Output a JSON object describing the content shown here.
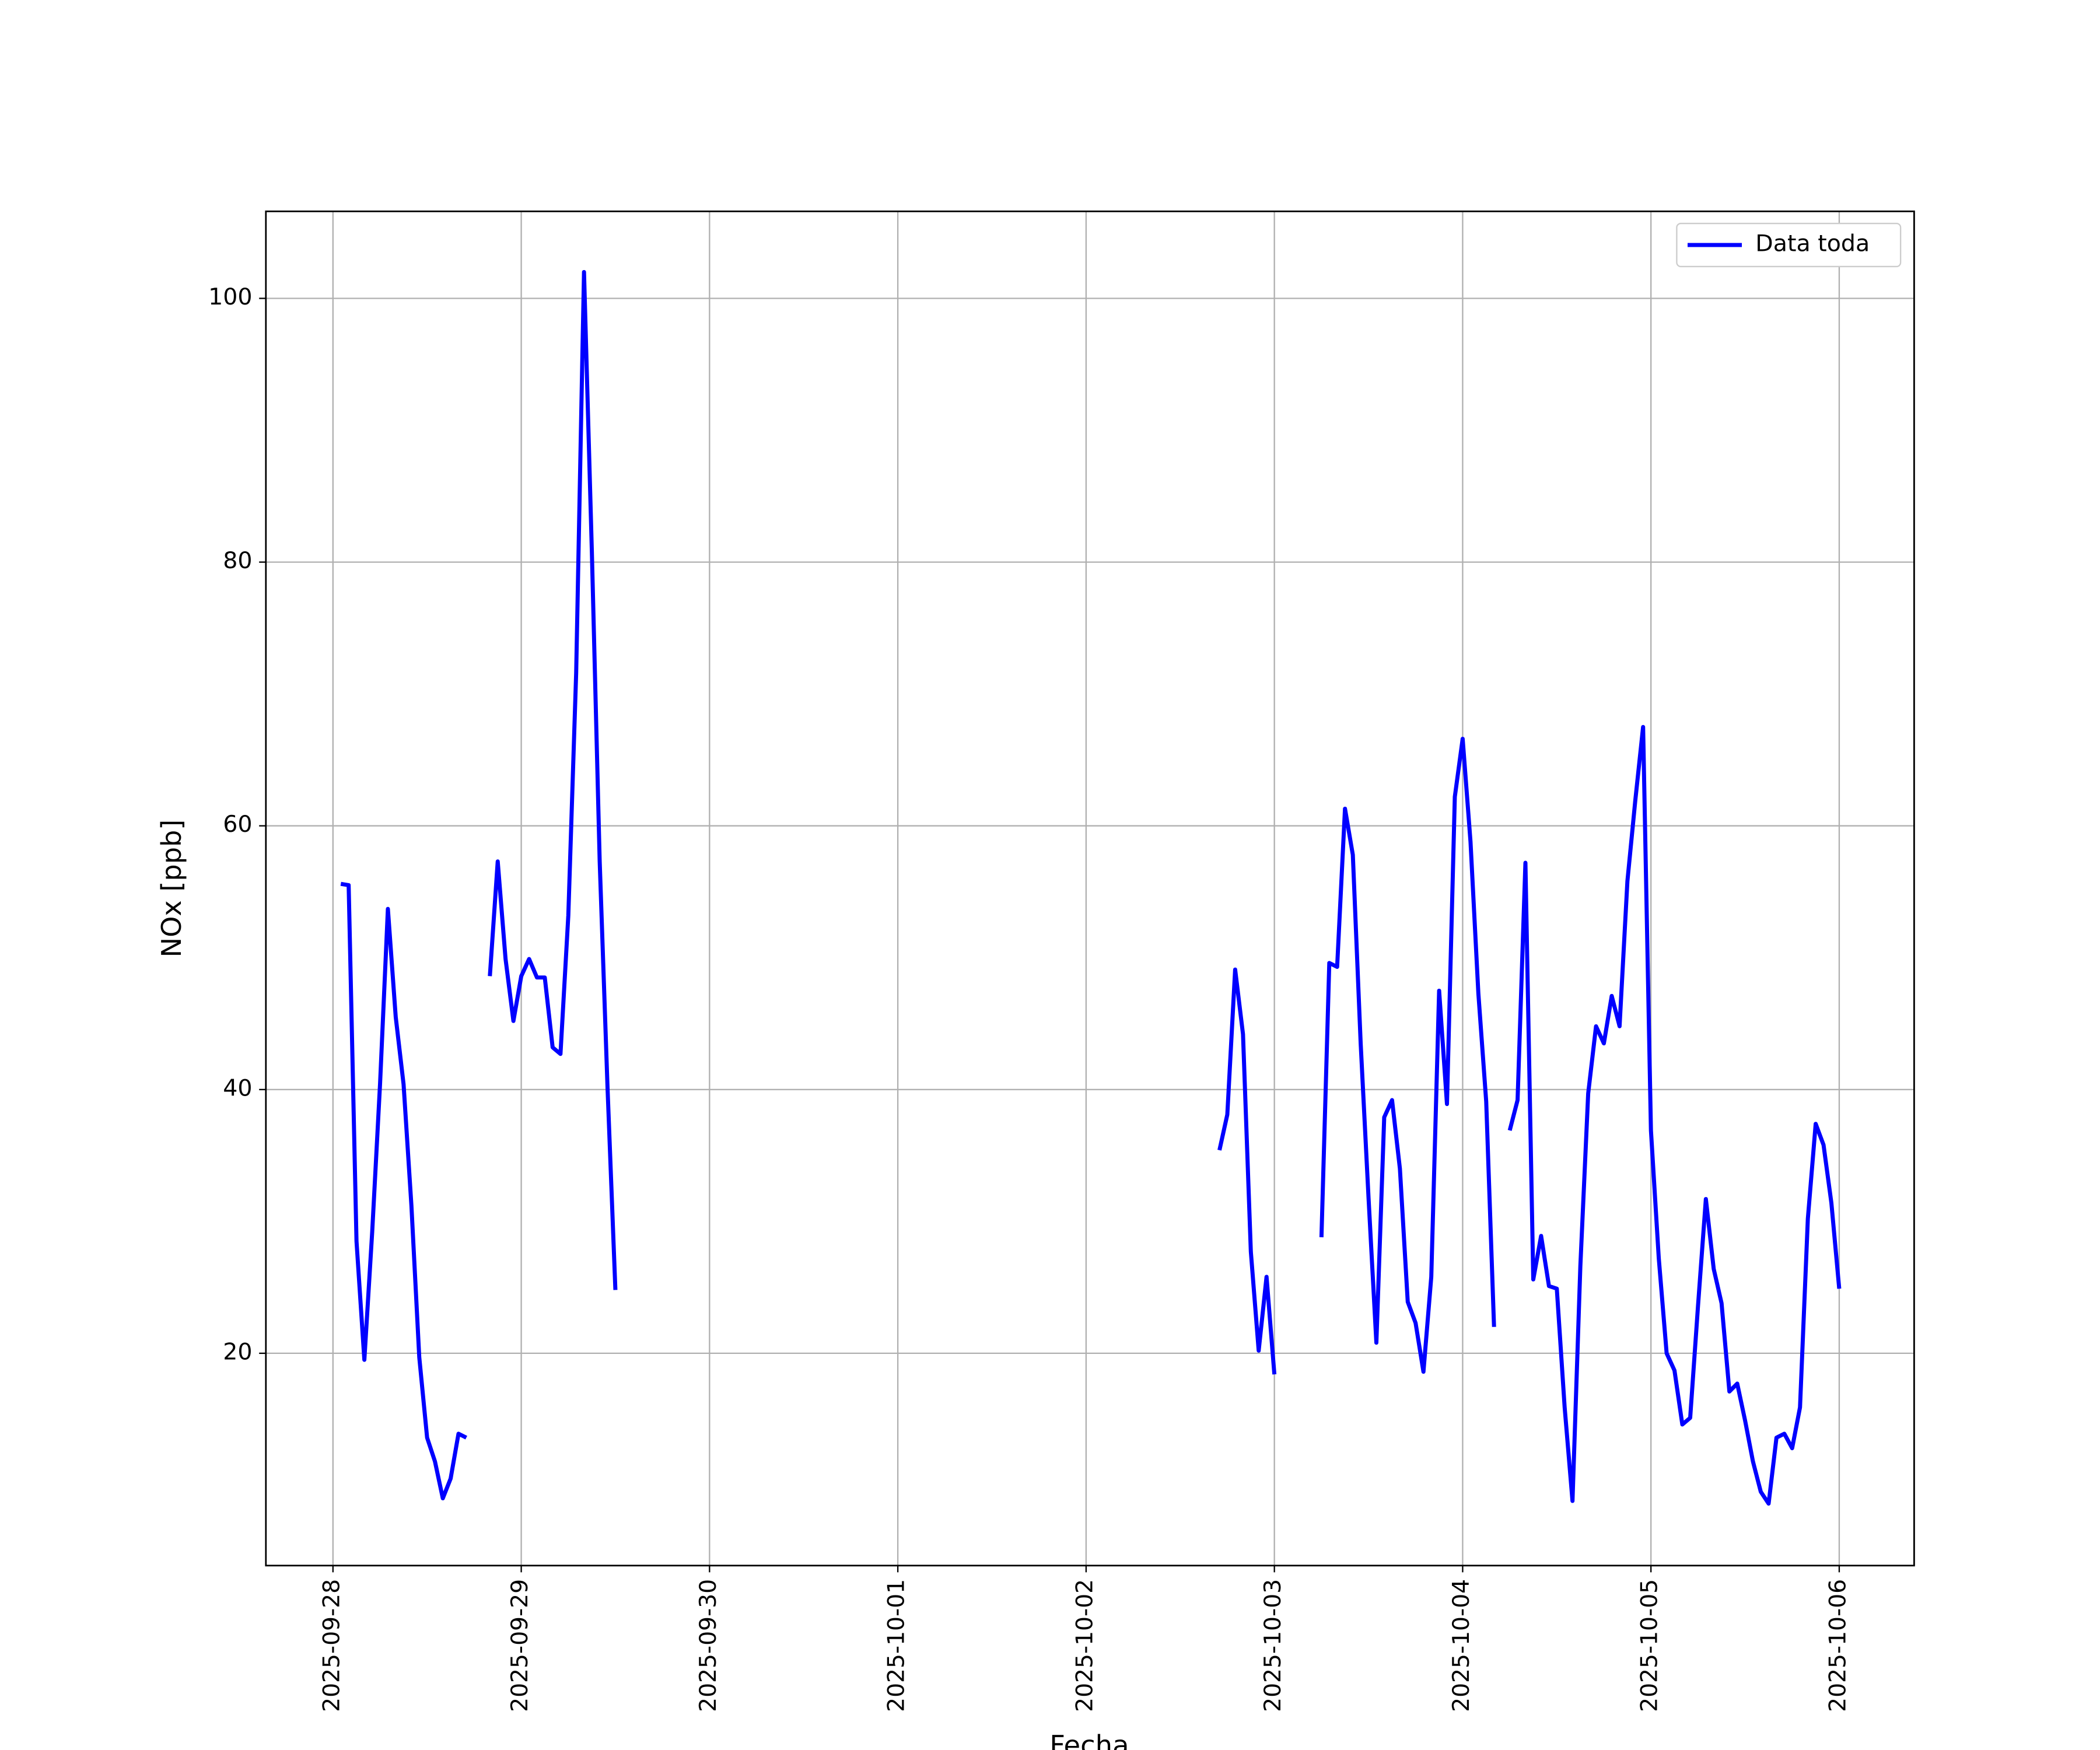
{
  "chart_data": {
    "type": "line",
    "xlabel": "Fecha",
    "ylabel": "NOx [ppb]",
    "x": [
      "2025-09-28 01:00",
      "2025-09-28 02:00",
      "2025-09-28 03:00",
      "2025-09-28 04:00",
      "2025-09-28 05:00",
      "2025-09-28 06:00",
      "2025-09-28 07:00",
      "2025-09-28 08:00",
      "2025-09-28 09:00",
      "2025-09-28 10:00",
      "2025-09-28 11:00",
      "2025-09-28 12:00",
      "2025-09-28 13:00",
      "2025-09-28 14:00",
      "2025-09-28 15:00",
      "2025-09-28 16:00",
      "2025-09-28 17:00",
      "2025-09-28 18:00",
      "2025-09-28 20:00",
      "2025-09-28 21:00",
      "2025-09-28 22:00",
      "2025-09-28 23:00",
      "2025-09-29 00:00",
      "2025-09-29 01:00",
      "2025-09-29 02:00",
      "2025-09-29 03:00",
      "2025-09-29 04:00",
      "2025-09-29 05:00",
      "2025-09-29 06:00",
      "2025-09-29 07:00",
      "2025-09-29 08:00",
      "2025-09-29 09:00",
      "2025-09-29 10:00",
      "2025-09-29 11:00",
      "2025-09-29 12:00",
      "2025-09-29 13:00",
      "2025-10-02 17:00",
      "2025-10-02 18:00",
      "2025-10-02 19:00",
      "2025-10-02 20:00",
      "2025-10-02 21:00",
      "2025-10-02 22:00",
      "2025-10-02 23:00",
      "2025-10-03 00:00",
      "2025-10-03 01:00",
      "2025-10-03 06:00",
      "2025-10-03 07:00",
      "2025-10-03 08:00",
      "2025-10-03 09:00",
      "2025-10-03 10:00",
      "2025-10-03 11:00",
      "2025-10-03 12:00",
      "2025-10-03 13:00",
      "2025-10-03 14:00",
      "2025-10-03 15:00",
      "2025-10-03 16:00",
      "2025-10-03 17:00",
      "2025-10-03 18:00",
      "2025-10-03 19:00",
      "2025-10-03 20:00",
      "2025-10-03 21:00",
      "2025-10-03 22:00",
      "2025-10-03 23:00",
      "2025-10-04 00:00",
      "2025-10-04 01:00",
      "2025-10-04 02:00",
      "2025-10-04 03:00",
      "2025-10-04 04:00",
      "2025-10-04 05:00",
      "2025-10-04 06:00",
      "2025-10-04 07:00",
      "2025-10-04 08:00",
      "2025-10-04 09:00",
      "2025-10-04 10:00",
      "2025-10-04 11:00",
      "2025-10-04 12:00",
      "2025-10-04 13:00",
      "2025-10-04 14:00",
      "2025-10-04 15:00",
      "2025-10-04 16:00",
      "2025-10-04 17:00",
      "2025-10-04 18:00",
      "2025-10-04 19:00",
      "2025-10-04 20:00",
      "2025-10-04 21:00",
      "2025-10-04 22:00",
      "2025-10-04 23:00",
      "2025-10-05 00:00",
      "2025-10-05 01:00",
      "2025-10-05 02:00",
      "2025-10-05 03:00",
      "2025-10-05 04:00",
      "2025-10-05 05:00",
      "2025-10-05 06:00",
      "2025-10-05 07:00",
      "2025-10-05 08:00",
      "2025-10-05 09:00",
      "2025-10-05 10:00",
      "2025-10-05 11:00",
      "2025-10-05 12:00",
      "2025-10-05 13:00",
      "2025-10-05 14:00",
      "2025-10-05 15:00",
      "2025-10-05 16:00",
      "2025-10-05 17:00",
      "2025-10-05 18:00",
      "2025-10-05 19:00",
      "2025-10-05 20:00",
      "2025-10-05 21:00",
      "2025-10-05 22:00",
      "2025-10-05 23:00",
      "2025-10-06 00:00"
    ],
    "series": [
      {
        "name": "Data toda",
        "color": "#0000ff",
        "values": [
          55.6,
          55.5,
          28.5,
          19.5,
          29.2,
          40.4,
          53.7,
          45.5,
          40.4,
          31.2,
          19.7,
          13.6,
          11.8,
          9.0,
          10.5,
          13.9,
          13.6,
          null,
          48.6,
          57.3,
          49.9,
          45.2,
          48.6,
          49.9,
          48.5,
          48.5,
          43.2,
          42.7,
          53.2,
          71.6,
          102.0,
          80.8,
          57.3,
          40.1,
          24.8,
          null,
          35.4,
          38.1,
          49.1,
          44.2,
          27.7,
          20.2,
          25.8,
          18.4,
          null,
          28.8,
          49.6,
          49.3,
          61.3,
          57.8,
          43.5,
          31.8,
          20.8,
          37.9,
          39.2,
          34.0,
          23.9,
          22.3,
          18.6,
          25.8,
          47.5,
          38.9,
          62.2,
          66.6,
          58.8,
          47.3,
          39.1,
          22.0,
          null,
          36.9,
          39.2,
          57.2,
          25.6,
          28.9,
          25.1,
          24.9,
          15.9,
          8.8,
          26.6,
          39.7,
          44.8,
          43.5,
          47.1,
          44.8,
          55.8,
          61.9,
          67.5,
          36.9,
          27.2,
          20.0,
          18.7,
          14.6,
          15.1,
          23.6,
          31.7,
          26.4,
          23.8,
          17.1,
          17.7,
          14.9,
          11.8,
          9.5,
          8.6,
          13.6,
          13.9,
          12.8,
          15.9,
          30.2,
          37.4,
          35.8,
          31.4,
          24.9
        ]
      }
    ],
    "xlim": [
      "2025-09-27 15:27",
      "2025-10-06 09:33"
    ],
    "xticks": [
      "2025-09-28",
      "2025-09-29",
      "2025-09-30",
      "2025-10-01",
      "2025-10-02",
      "2025-10-03",
      "2025-10-04",
      "2025-10-05",
      "2025-10-06"
    ],
    "ylim": [
      3.9,
      106.6
    ],
    "yticks": [
      20,
      40,
      60,
      80,
      100
    ],
    "grid": true,
    "legend": "upper right"
  }
}
